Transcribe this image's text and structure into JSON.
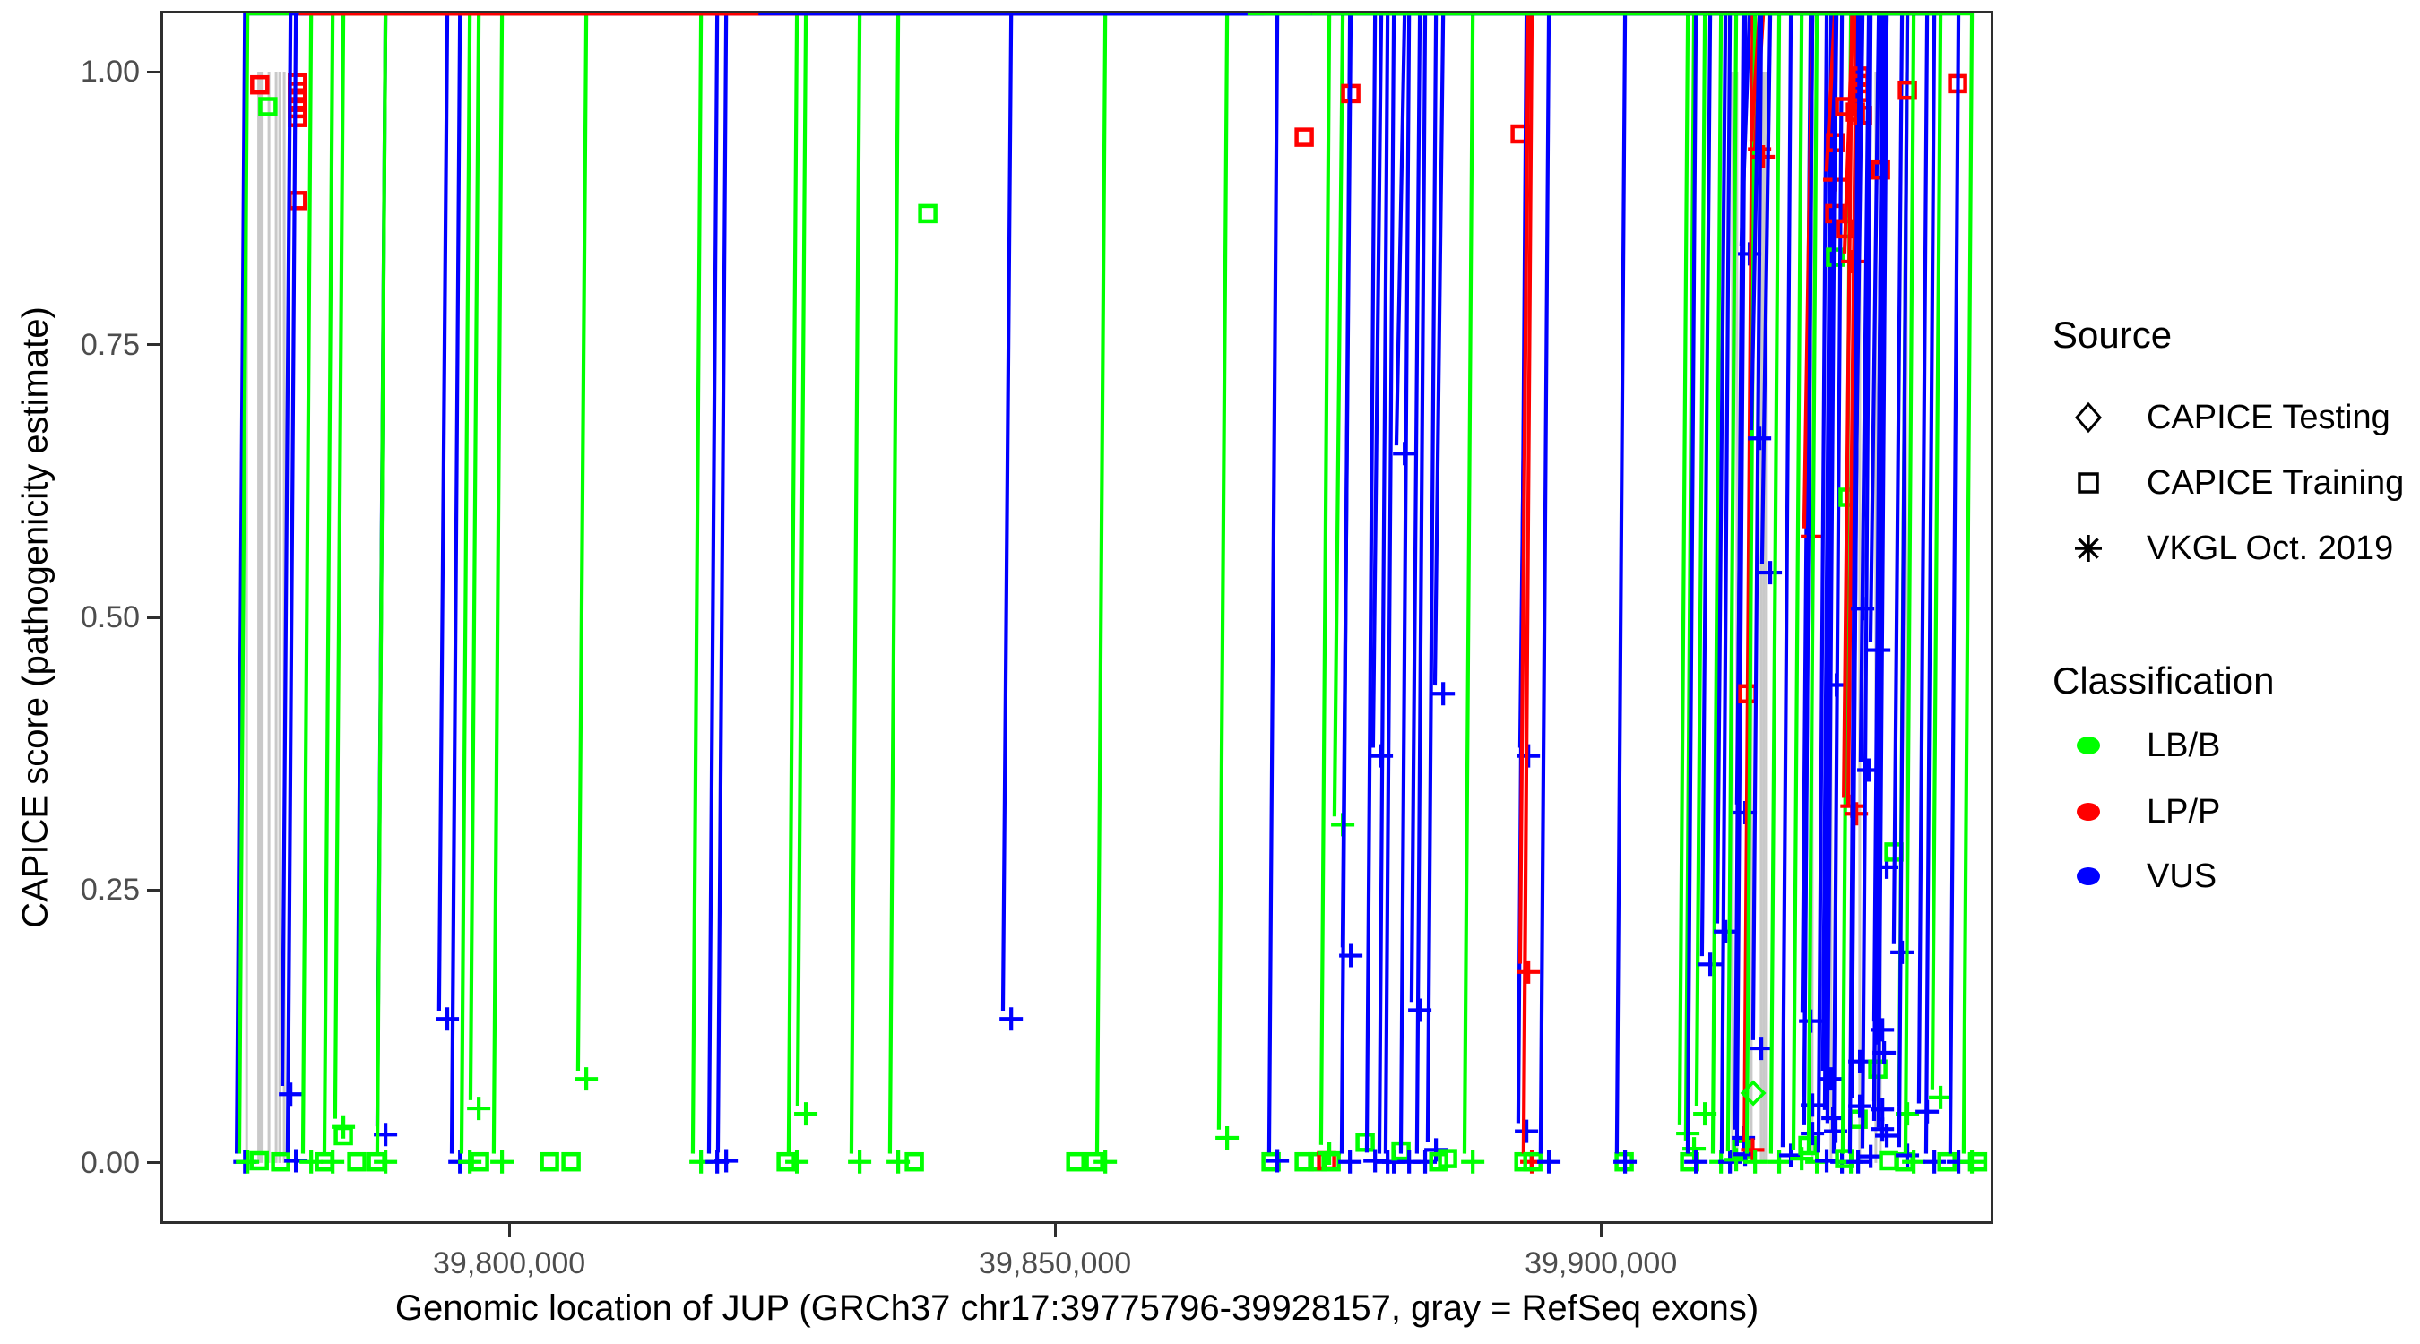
{
  "legend": {
    "source": {
      "title": "Source",
      "items": [
        {
          "label": "CAPICE Testing",
          "marker": "diamond"
        },
        {
          "label": "CAPICE Training",
          "marker": "square"
        },
        {
          "label": "VKGL Oct. 2019",
          "marker": "asterisk"
        }
      ]
    },
    "classification": {
      "title": "Classification",
      "items": [
        {
          "label": "LB/B",
          "color": "#00FF00"
        },
        {
          "label": "LP/P",
          "color": "#FF0000"
        },
        {
          "label": "VUS",
          "color": "#0000FF"
        }
      ]
    }
  },
  "chart_data": {
    "type": "scatter",
    "title": "",
    "xlabel": "Genomic location of JUP (GRCh37 chr17:39775796-39928157, gray = RefSeq exons)",
    "ylabel": "CAPICE score (pathogenicity estimate)",
    "x_axis": {
      "range": [
        39768300,
        39935700
      ],
      "ticks": [
        {
          "value": 39800000,
          "label": "39,800,000"
        },
        {
          "value": 39850000,
          "label": "39,850,000"
        },
        {
          "value": 39900000,
          "label": "39,900,000"
        }
      ]
    },
    "y_axis": {
      "range": [
        -0.0534,
        1.0534
      ],
      "ticks": [
        {
          "value": 1.0,
          "label": "1.00"
        },
        {
          "value": 0.75,
          "label": "0.75"
        },
        {
          "value": 0.5,
          "label": "0.50"
        },
        {
          "value": 0.25,
          "label": "0.25"
        },
        {
          "value": 0.0,
          "label": "0.00"
        }
      ]
    },
    "colors": {
      "lbb": "#00FF00",
      "lpp": "#FF0000",
      "vus": "#0000FF",
      "exon": "#C9C9C9",
      "axis": "#2e2e2e",
      "tick_label": "#4d4d4d"
    },
    "marker_codes": {
      "di": "CAPICE Testing",
      "sq": "CAPICE Training",
      "as": "VKGL Oct. 2019"
    },
    "class_codes": {
      "g": "LB/B",
      "r": "LP/P",
      "b": "VUS"
    },
    "exon_y_span": [
      0.0,
      1.0
    ],
    "exons_bp": [
      [
        39775825,
        39776075
      ],
      [
        39776930,
        39777420
      ],
      [
        39777875,
        39778120
      ],
      [
        39778530,
        39778780
      ],
      [
        39778860,
        39779100
      ],
      [
        39779270,
        39779515
      ],
      [
        39911925,
        39912175
      ],
      [
        39912335,
        39912585
      ],
      [
        39913645,
        39913895
      ],
      [
        39914550,
        39914800
      ],
      [
        39914795,
        39915045
      ],
      [
        39915040,
        39915290
      ],
      [
        39919230,
        39919480
      ],
      [
        39920955,
        39921205
      ],
      [
        39923580,
        39923830
      ],
      [
        39925060,
        39925310
      ],
      [
        39925470,
        39925720
      ],
      [
        39927850,
        39928100
      ]
    ],
    "points_columns": [
      "genomic_position",
      "capice_score",
      "source",
      "classification"
    ],
    "points": [
      [
        39777150,
        0.988,
        "sq",
        "r"
      ],
      [
        39777900,
        0.968,
        "sq",
        "g"
      ],
      [
        39780600,
        0.99,
        "sq",
        "r"
      ],
      [
        39780600,
        0.982,
        "sq",
        "r"
      ],
      [
        39780600,
        0.974,
        "sq",
        "r"
      ],
      [
        39780600,
        0.966,
        "sq",
        "r"
      ],
      [
        39780600,
        0.958,
        "sq",
        "r"
      ],
      [
        39780600,
        0.882,
        "sq",
        "r"
      ],
      [
        39775796,
        0.001,
        "as",
        "b"
      ],
      [
        39776030,
        0.001,
        "as",
        "g"
      ],
      [
        39777100,
        0.002,
        "sq",
        "g"
      ],
      [
        39779060,
        0.001,
        "sq",
        "g"
      ],
      [
        39779970,
        0.063,
        "as",
        "b"
      ],
      [
        39780460,
        0.002,
        "as",
        "b"
      ],
      [
        39781860,
        0.001,
        "as",
        "g"
      ],
      [
        39783090,
        0.001,
        "sq",
        "g"
      ],
      [
        39783830,
        0.001,
        "as",
        "g"
      ],
      [
        39784810,
        0.025,
        "sq",
        "g"
      ],
      [
        39784810,
        0.033,
        "as",
        "g"
      ],
      [
        39786040,
        0.001,
        "sq",
        "g"
      ],
      [
        39787850,
        0.001,
        "sq",
        "g"
      ],
      [
        39788670,
        0.026,
        "as",
        "b"
      ],
      [
        39788670,
        0.001,
        "as",
        "g"
      ],
      [
        39794330,
        0.132,
        "as",
        "b"
      ],
      [
        39795490,
        0.001,
        "as",
        "b"
      ],
      [
        39796390,
        0.001,
        "as",
        "g"
      ],
      [
        39797210,
        0.05,
        "as",
        "g"
      ],
      [
        39797290,
        0.001,
        "sq",
        "g"
      ],
      [
        39799340,
        0.001,
        "as",
        "g"
      ],
      [
        39803690,
        0.001,
        "sq",
        "g"
      ],
      [
        39805660,
        0.001,
        "sq",
        "g"
      ],
      [
        39807060,
        0.077,
        "as",
        "g"
      ],
      [
        39817570,
        0.001,
        "as",
        "g"
      ],
      [
        39819050,
        0.001,
        "as",
        "b"
      ],
      [
        39819870,
        0.002,
        "as",
        "b"
      ],
      [
        39825370,
        0.001,
        "sq",
        "g"
      ],
      [
        39826350,
        0.001,
        "as",
        "g"
      ],
      [
        39827170,
        0.045,
        "as",
        "g"
      ],
      [
        39832100,
        0.001,
        "as",
        "g"
      ],
      [
        39835630,
        0.001,
        "as",
        "g"
      ],
      [
        39837110,
        0.001,
        "sq",
        "g"
      ],
      [
        39838340,
        0.87,
        "sq",
        "g"
      ],
      [
        39845980,
        0.132,
        "as",
        "b"
      ],
      [
        39851890,
        0.001,
        "sq",
        "g"
      ],
      [
        39853610,
        0.001,
        "sq",
        "g"
      ],
      [
        39854600,
        0.001,
        "as",
        "g"
      ],
      [
        39865760,
        0.023,
        "as",
        "g"
      ],
      [
        39869780,
        0.001,
        "sq",
        "g"
      ],
      [
        39870360,
        0.002,
        "as",
        "b"
      ],
      [
        39872820,
        0.94,
        "sq",
        "r"
      ],
      [
        39872820,
        0.001,
        "sq",
        "g"
      ],
      [
        39874050,
        0.001,
        "sq",
        "g"
      ],
      [
        39874870,
        0.002,
        "sq",
        "r"
      ],
      [
        39875120,
        0.009,
        "as",
        "g"
      ],
      [
        39875280,
        0.001,
        "sq",
        "g"
      ],
      [
        39876350,
        0.31,
        "as",
        "g"
      ],
      [
        39877010,
        0.001,
        "as",
        "b"
      ],
      [
        39877090,
        0.98,
        "sq",
        "r"
      ],
      [
        39877090,
        0.19,
        "as",
        "b"
      ],
      [
        39878400,
        0.019,
        "sq",
        "g"
      ],
      [
        39879310,
        0.002,
        "as",
        "b"
      ],
      [
        39879880,
        0.373,
        "as",
        "b"
      ],
      [
        39880460,
        0.001,
        "as",
        "b"
      ],
      [
        39881030,
        0.001,
        "as",
        "b"
      ],
      [
        39881690,
        0.011,
        "sq",
        "g"
      ],
      [
        39882020,
        0.65,
        "as",
        "b"
      ],
      [
        39882430,
        0.001,
        "as",
        "b"
      ],
      [
        39883410,
        0.14,
        "as",
        "b"
      ],
      [
        39883900,
        0.001,
        "as",
        "b"
      ],
      [
        39884890,
        0.012,
        "as",
        "b"
      ],
      [
        39885140,
        0.001,
        "sq",
        "g"
      ],
      [
        39885550,
        0.43,
        "as",
        "b"
      ],
      [
        39885960,
        0.004,
        "sq",
        "g"
      ],
      [
        39888260,
        0.001,
        "as",
        "g"
      ],
      [
        39892610,
        0.943,
        "sq",
        "r"
      ],
      [
        39892940,
        0.001,
        "sq",
        "g"
      ],
      [
        39893180,
        0.029,
        "as",
        "b"
      ],
      [
        39893350,
        0.373,
        "as",
        "b"
      ],
      [
        39893350,
        0.175,
        "as",
        "r"
      ],
      [
        39893670,
        0.001,
        "as",
        "r"
      ],
      [
        39893760,
        0.001,
        "sq",
        "g"
      ],
      [
        39895230,
        0.001,
        "as",
        "b"
      ],
      [
        39902130,
        0.001,
        "sq",
        "g"
      ],
      [
        39902210,
        0.001,
        "as",
        "b"
      ],
      [
        39907960,
        0.027,
        "as",
        "g"
      ],
      [
        39908120,
        0.001,
        "sq",
        "g"
      ],
      [
        39908530,
        0.013,
        "as",
        "g"
      ],
      [
        39908700,
        0.001,
        "as",
        "b"
      ],
      [
        39909520,
        0.045,
        "as",
        "g"
      ],
      [
        39910010,
        0.182,
        "as",
        "b"
      ],
      [
        39911000,
        0.001,
        "as",
        "g"
      ],
      [
        39911410,
        0.212,
        "as",
        "b"
      ],
      [
        39911820,
        0.001,
        "as",
        "b"
      ],
      [
        39912390,
        0.003,
        "as",
        "g"
      ],
      [
        39912890,
        0.013,
        "sq",
        "g"
      ],
      [
        39913050,
        0.023,
        "as",
        "b"
      ],
      [
        39913210,
        0.008,
        "as",
        "b"
      ],
      [
        39913210,
        0.321,
        "as",
        "b"
      ],
      [
        39913460,
        0.43,
        "sq",
        "r"
      ],
      [
        39913620,
        0.833,
        "as",
        "b"
      ],
      [
        39913900,
        0.012,
        "as",
        "r"
      ],
      [
        39913950,
        0.064,
        "di",
        "g"
      ],
      [
        39914120,
        0.001,
        "as",
        "g"
      ],
      [
        39914530,
        0.929,
        "as",
        "r"
      ],
      [
        39914860,
        0.922,
        "as",
        "r"
      ],
      [
        39914530,
        0.664,
        "as",
        "b"
      ],
      [
        39914690,
        0.105,
        "as",
        "b"
      ],
      [
        39915510,
        0.541,
        "as",
        "b"
      ],
      [
        39916330,
        0.001,
        "as",
        "g"
      ],
      [
        39917400,
        0.007,
        "as",
        "b"
      ],
      [
        39918390,
        0.004,
        "as",
        "g"
      ],
      [
        39918960,
        0.016,
        "sq",
        "g"
      ],
      [
        39919210,
        0.13,
        "as",
        "b"
      ],
      [
        39919370,
        0.574,
        "as",
        "r"
      ],
      [
        39919370,
        0.053,
        "as",
        "b"
      ],
      [
        39919370,
        0.027,
        "as",
        "b"
      ],
      [
        39919780,
        0.001,
        "as",
        "g"
      ],
      [
        39920680,
        0.002,
        "as",
        "b"
      ],
      [
        39921090,
        0.077,
        "as",
        "b"
      ],
      [
        39921260,
        0.041,
        "as",
        "b"
      ],
      [
        39921420,
        0.901,
        "as",
        "r"
      ],
      [
        39921500,
        0.935,
        "sq",
        "r"
      ],
      [
        39921420,
        0.87,
        "sq",
        "r"
      ],
      [
        39921500,
        0.83,
        "sq",
        "g"
      ],
      [
        39921590,
        0.438,
        "as",
        "b"
      ],
      [
        39921500,
        0.029,
        "as",
        "b"
      ],
      [
        39922080,
        0.001,
        "as",
        "b"
      ],
      [
        39922330,
        0.968,
        "sq",
        "r"
      ],
      [
        39922330,
        0.004,
        "sq",
        "g"
      ],
      [
        39922410,
        0.856,
        "sq",
        "r"
      ],
      [
        39922650,
        0.61,
        "sq",
        "g"
      ],
      [
        39922900,
        0.001,
        "as",
        "g"
      ],
      [
        39923070,
        0.826,
        "as",
        "r"
      ],
      [
        39923000,
        0.327,
        "as",
        "r"
      ],
      [
        39923400,
        0.32,
        "as",
        "r"
      ],
      [
        39923560,
        0.04,
        "sq",
        "g"
      ],
      [
        39923560,
        0.001,
        "as",
        "b"
      ],
      [
        39923720,
        0.996,
        "sq",
        "r"
      ],
      [
        39923720,
        0.989,
        "sq",
        "r"
      ],
      [
        39923720,
        0.981,
        "sq",
        "r"
      ],
      [
        39923310,
        0.963,
        "sq",
        "r"
      ],
      [
        39923970,
        0.96,
        "sq",
        "r"
      ],
      [
        39923970,
        0.508,
        "as",
        "b"
      ],
      [
        39923720,
        0.093,
        "as",
        "b"
      ],
      [
        39923720,
        0.052,
        "as",
        "b"
      ],
      [
        39924540,
        0.36,
        "as",
        "b"
      ],
      [
        39924710,
        0.006,
        "as",
        "b"
      ],
      [
        39925360,
        0.086,
        "sq",
        "g"
      ],
      [
        39925450,
        0.47,
        "as",
        "b"
      ],
      [
        39925610,
        0.91,
        "sq",
        "r"
      ],
      [
        39925940,
        0.101,
        "as",
        "b"
      ],
      [
        39925780,
        0.122,
        "as",
        "b"
      ],
      [
        39925780,
        0.049,
        "as",
        "b"
      ],
      [
        39925780,
        0.031,
        "as",
        "b"
      ],
      [
        39926180,
        0.025,
        "as",
        "b"
      ],
      [
        39926180,
        0.271,
        "as",
        "b"
      ],
      [
        39926350,
        0.002,
        "sq",
        "g"
      ],
      [
        39926840,
        0.285,
        "sq",
        "g"
      ],
      [
        39927580,
        0.193,
        "as",
        "b"
      ],
      [
        39927830,
        0.001,
        "sq",
        "g"
      ],
      [
        39928070,
        0.045,
        "as",
        "g"
      ],
      [
        39928070,
        0.007,
        "as",
        "b"
      ],
      [
        39928070,
        0.983,
        "sq",
        "r"
      ],
      [
        39932670,
        0.989,
        "sq",
        "r"
      ],
      [
        39928650,
        0.001,
        "as",
        "g"
      ],
      [
        39929880,
        0.047,
        "as",
        "b"
      ],
      [
        39930540,
        0.001,
        "as",
        "b"
      ],
      [
        39931110,
        0.06,
        "as",
        "g"
      ],
      [
        39931690,
        0.001,
        "sq",
        "g"
      ],
      [
        39932750,
        0.001,
        "as",
        "b"
      ],
      [
        39933980,
        0.001,
        "as",
        "g"
      ],
      [
        39934500,
        0.001,
        "sq",
        "g"
      ]
    ]
  }
}
